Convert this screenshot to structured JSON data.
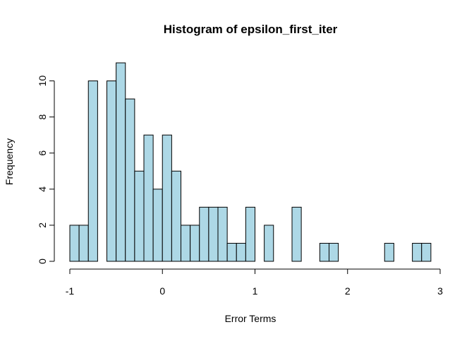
{
  "chart_data": {
    "type": "bar",
    "title": "Histogram of epsilon_first_iter",
    "xlabel": "Error Terms",
    "ylabel": "Frequency",
    "xlim": [
      -1,
      3
    ],
    "ylim": [
      0,
      11
    ],
    "bin_width": 0.1,
    "bins_start": [
      -1.0,
      -0.9,
      -0.8,
      -0.7,
      -0.6,
      -0.5,
      -0.4,
      -0.3,
      -0.2,
      -0.1,
      0.0,
      0.1,
      0.2,
      0.3,
      0.4,
      0.5,
      0.6,
      0.7,
      0.8,
      0.9,
      1.0,
      1.1,
      1.2,
      1.3,
      1.4,
      1.5,
      1.6,
      1.7,
      1.8,
      1.9,
      2.0,
      2.1,
      2.2,
      2.3,
      2.4,
      2.5,
      2.6,
      2.7,
      2.8
    ],
    "values": [
      2,
      2,
      10,
      0,
      10,
      11,
      9,
      5,
      7,
      4,
      7,
      5,
      2,
      2,
      3,
      3,
      3,
      1,
      1,
      3,
      0,
      2,
      0,
      0,
      3,
      0,
      0,
      1,
      1,
      0,
      0,
      0,
      0,
      0,
      1,
      0,
      0,
      1,
      1
    ],
    "x_ticks": [
      -1,
      0,
      1,
      2,
      3
    ],
    "y_ticks": [
      0,
      2,
      4,
      6,
      8,
      10
    ],
    "grid": false,
    "bar_fill": "#add8e6",
    "bar_stroke": "#000000"
  }
}
